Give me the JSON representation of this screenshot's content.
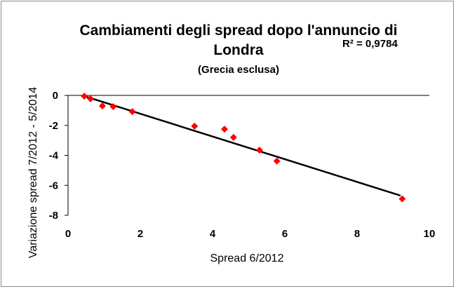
{
  "chart_data": {
    "type": "scatter",
    "title_line1": "Cambiamenti degli spread dopo l'annuncio di",
    "title_line2": "Londra",
    "subtitle": "(Grecia esclusa)",
    "annotation": "R² = 0,9784",
    "xlabel": "Spread 6/2012",
    "ylabel": "Variazione spread 7/2012 - 5/2014",
    "xlim": [
      0,
      10
    ],
    "ylim": [
      -8,
      0
    ],
    "x_ticks": [
      "0",
      "2",
      "4",
      "6",
      "8",
      "10"
    ],
    "y_ticks": [
      "0",
      "-2",
      "-4",
      "-6",
      "-8"
    ],
    "x_tick_values": [
      0,
      2,
      4,
      6,
      8,
      10
    ],
    "y_tick_values": [
      0,
      -2,
      -4,
      -6,
      -8
    ],
    "grid": false,
    "legend": "none",
    "points": [
      {
        "x": 0.45,
        "y": -0.05
      },
      {
        "x": 0.62,
        "y": -0.22
      },
      {
        "x": 0.95,
        "y": -0.7
      },
      {
        "x": 1.25,
        "y": -0.75
      },
      {
        "x": 1.78,
        "y": -1.08
      },
      {
        "x": 3.5,
        "y": -2.05
      },
      {
        "x": 4.33,
        "y": -2.25
      },
      {
        "x": 4.58,
        "y": -2.8
      },
      {
        "x": 5.3,
        "y": -3.65
      },
      {
        "x": 5.78,
        "y": -4.38
      },
      {
        "x": 9.25,
        "y": -6.9
      }
    ],
    "trendline": {
      "x0": 0.45,
      "y0": -0.05,
      "x1": 9.2,
      "y1": -6.68
    },
    "marker_color": "#ff0000",
    "line_color": "#000000"
  }
}
